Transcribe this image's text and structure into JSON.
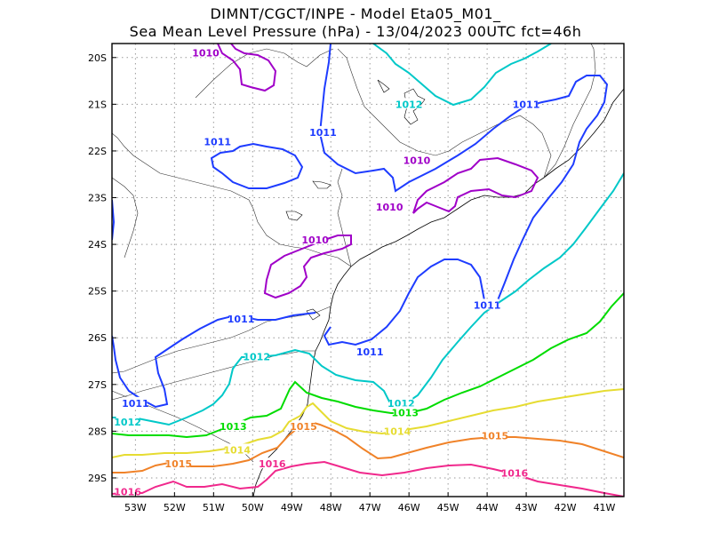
{
  "title": {
    "line1": "DIMNT/CGCT/INPE -  Model Eta05_M01_",
    "line2": "Sea Mean Level Pressure (hPa) - 13/04/2023 00UTC fct=46h"
  },
  "axes": {
    "lon_ticks": [
      "53W",
      "52W",
      "51W",
      "50W",
      "49W",
      "48W",
      "47W",
      "46W",
      "45W",
      "44W",
      "43W",
      "42W",
      "41W"
    ],
    "lat_ticks": [
      "20S",
      "21S",
      "22S",
      "23S",
      "24S",
      "25S",
      "26S",
      "27S",
      "28S",
      "29S"
    ],
    "lon_range": [
      -53.6,
      -40.5
    ],
    "lat_range": [
      -29.4,
      -19.7
    ],
    "grid": true
  },
  "isobar_colors": {
    "1010": "#a000c8",
    "1011": "#1e3cff",
    "1012": "#00c8c8",
    "1013": "#00dc00",
    "1014": "#e6dc32",
    "1015": "#f08228",
    "1016": "#f0288c"
  },
  "isobar_labels": [
    {
      "text": "1010",
      "lon": -51.2,
      "lat": -19.9,
      "level": "1010"
    },
    {
      "text": "1010",
      "lon": -45.8,
      "lat": -22.2,
      "level": "1010"
    },
    {
      "text": "1010",
      "lon": -46.5,
      "lat": -23.2,
      "level": "1010"
    },
    {
      "text": "1010",
      "lon": -48.4,
      "lat": -23.9,
      "level": "1010"
    },
    {
      "text": "1011",
      "lon": -43.0,
      "lat": -21.0,
      "level": "1011"
    },
    {
      "text": "1011",
      "lon": -48.2,
      "lat": -21.6,
      "level": "1011"
    },
    {
      "text": "1011",
      "lon": -50.9,
      "lat": -21.8,
      "level": "1011"
    },
    {
      "text": "1011",
      "lon": -44.0,
      "lat": -25.3,
      "level": "1011"
    },
    {
      "text": "1011",
      "lon": -50.3,
      "lat": -25.6,
      "level": "1011"
    },
    {
      "text": "1011",
      "lon": -47.0,
      "lat": -26.3,
      "level": "1011"
    },
    {
      "text": "1011",
      "lon": -53.0,
      "lat": -27.4,
      "level": "1011"
    },
    {
      "text": "1012",
      "lon": -46.0,
      "lat": -21.0,
      "level": "1012"
    },
    {
      "text": "1012",
      "lon": -49.9,
      "lat": -26.4,
      "level": "1012"
    },
    {
      "text": "1012",
      "lon": -46.2,
      "lat": -27.4,
      "level": "1012"
    },
    {
      "text": "1012",
      "lon": -53.2,
      "lat": -27.8,
      "level": "1012"
    },
    {
      "text": "1013",
      "lon": -46.1,
      "lat": -27.6,
      "level": "1013"
    },
    {
      "text": "1013",
      "lon": -50.5,
      "lat": -27.9,
      "level": "1013"
    },
    {
      "text": "1014",
      "lon": -46.3,
      "lat": -28.0,
      "level": "1014"
    },
    {
      "text": "1014",
      "lon": -50.4,
      "lat": -28.4,
      "level": "1014"
    },
    {
      "text": "1015",
      "lon": -48.7,
      "lat": -27.9,
      "level": "1015"
    },
    {
      "text": "1015",
      "lon": -43.8,
      "lat": -28.1,
      "level": "1015"
    },
    {
      "text": "1015",
      "lon": -51.9,
      "lat": -28.7,
      "level": "1015"
    },
    {
      "text": "1016",
      "lon": -49.5,
      "lat": -28.7,
      "level": "1016"
    },
    {
      "text": "1016",
      "lon": -43.3,
      "lat": -28.9,
      "level": "1016"
    },
    {
      "text": "1016",
      "lon": -53.2,
      "lat": -29.3,
      "level": "1016"
    }
  ]
}
